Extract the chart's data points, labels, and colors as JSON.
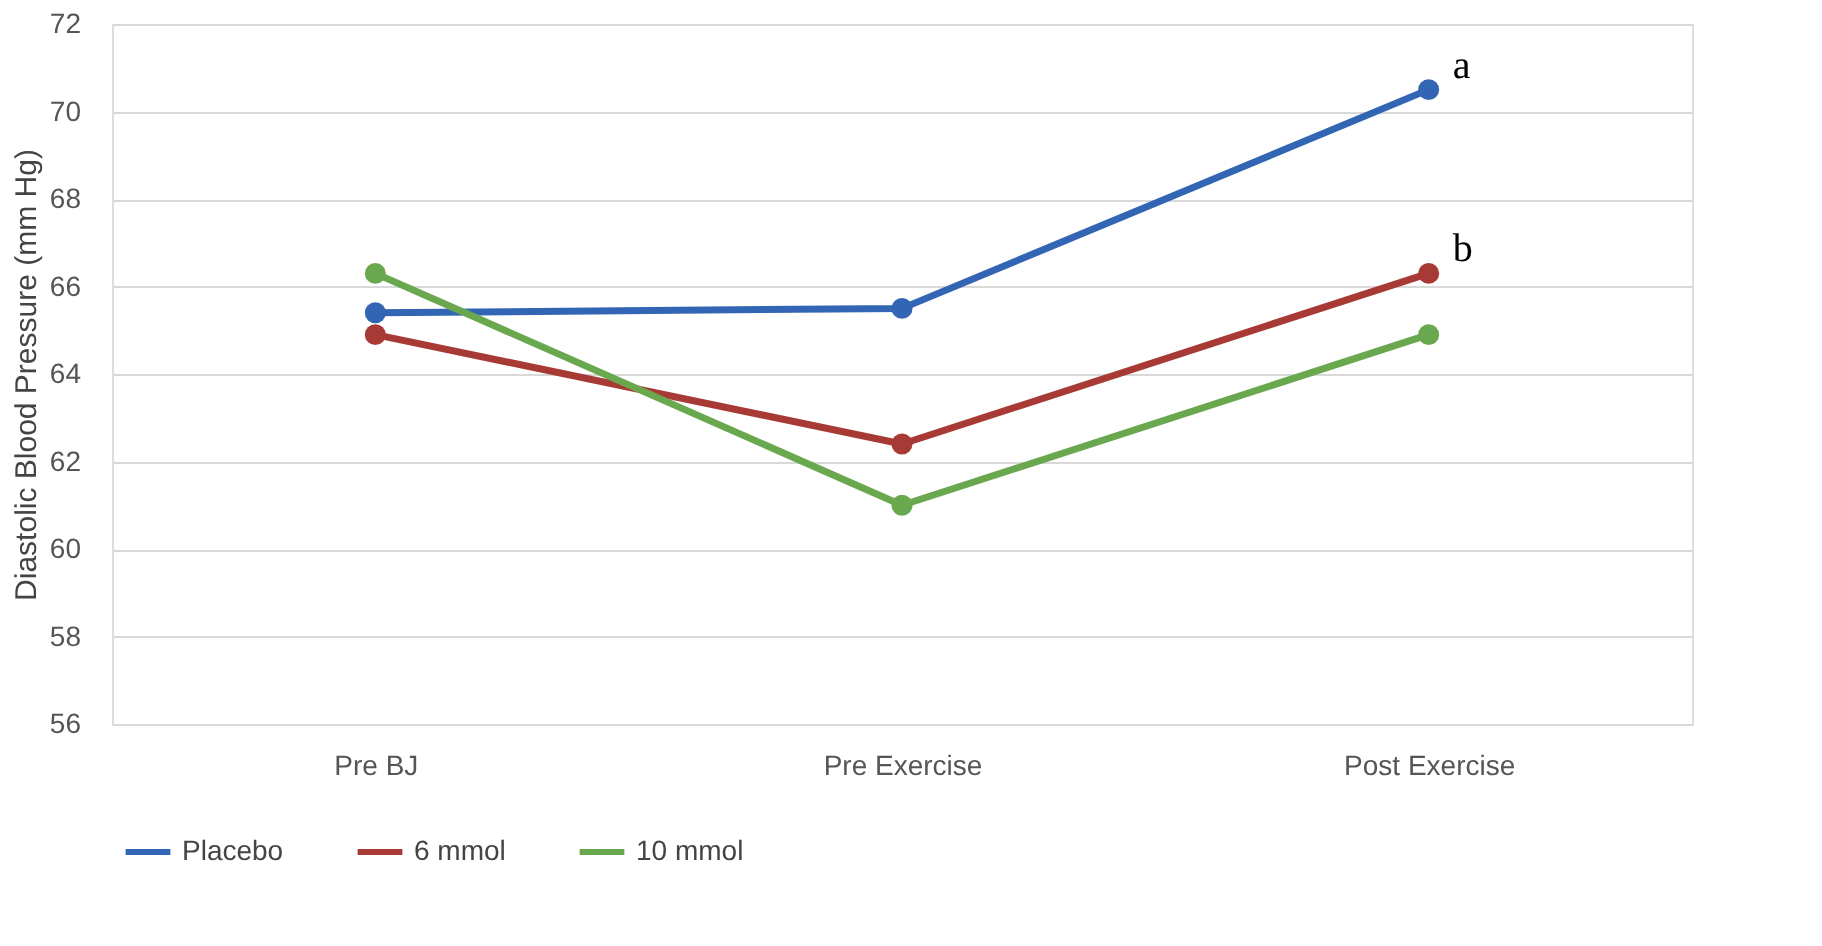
{
  "chart_data": {
    "type": "line",
    "ylabel": "Diastolic Blood Pressure (mm Hg)",
    "categories": [
      "Pre BJ",
      "Pre Exercise",
      "Post Exercise"
    ],
    "series": [
      {
        "name": "Placebo",
        "color": "#3265b4",
        "values": [
          65.4,
          65.5,
          70.5
        ]
      },
      {
        "name": "6 mmol",
        "color": "#a83a36",
        "values": [
          64.9,
          62.4,
          66.3
        ]
      },
      {
        "name": "10 mmol",
        "color": "#6aa84f",
        "values": [
          66.3,
          61.0,
          64.9
        ]
      }
    ],
    "ylim": [
      56,
      72
    ],
    "yticks": [
      56,
      58,
      60,
      62,
      64,
      66,
      68,
      70,
      72
    ],
    "annotations": [
      {
        "text": "a",
        "x": "Post Exercise",
        "y": 70.5
      },
      {
        "text": "b",
        "x": "Post Exercise",
        "y": 66.3
      }
    ],
    "grid": "y",
    "legend": "bottom",
    "marker": "circle",
    "line_style": "solid"
  }
}
